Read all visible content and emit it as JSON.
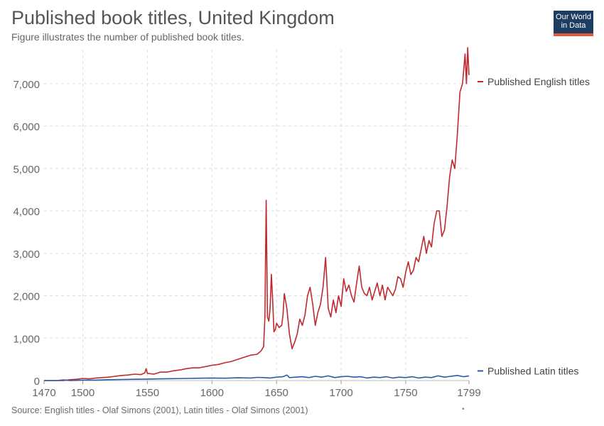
{
  "header": {
    "title": "Published book titles, United Kingdom",
    "subtitle": "Figure illustrates the number of published book titles.",
    "logo_line1": "Our World",
    "logo_line2": "in Data"
  },
  "footer": {
    "source": "Source: English titles - Olaf Simons (2001), Latin titles - Olaf Simons (2001)"
  },
  "colors": {
    "english": "#be2a2f",
    "latin": "#2b5aa6",
    "grid": "#dddddd",
    "logo_bg": "#1d3d63",
    "logo_bar": "#e2593b"
  },
  "chart_data": {
    "type": "line",
    "x_ticks": [
      "1470",
      "1500",
      "1550",
      "1600",
      "1650",
      "1700",
      "1750",
      "1799"
    ],
    "y_ticks": [
      "0",
      "1,000",
      "2,000",
      "3,000",
      "4,000",
      "5,000",
      "6,000",
      "7,000"
    ],
    "xlim": [
      1470,
      1799
    ],
    "ylim": [
      0,
      7800
    ],
    "grid": true,
    "legend": "right, labels at line ends",
    "series": [
      {
        "name": "Published English titles",
        "color": "#be2a2f",
        "x": [
          1470,
          1475,
          1480,
          1485,
          1490,
          1495,
          1500,
          1505,
          1510,
          1515,
          1520,
          1525,
          1530,
          1535,
          1540,
          1545,
          1548,
          1549,
          1550,
          1555,
          1560,
          1565,
          1570,
          1575,
          1580,
          1585,
          1590,
          1595,
          1600,
          1605,
          1610,
          1615,
          1620,
          1625,
          1630,
          1635,
          1638,
          1640,
          1641,
          1642,
          1643,
          1644,
          1645,
          1646,
          1647,
          1648,
          1649,
          1650,
          1652,
          1654,
          1655,
          1656,
          1658,
          1660,
          1662,
          1664,
          1666,
          1668,
          1670,
          1672,
          1674,
          1676,
          1678,
          1680,
          1682,
          1684,
          1686,
          1688,
          1689,
          1690,
          1692,
          1694,
          1696,
          1698,
          1700,
          1702,
          1704,
          1706,
          1708,
          1710,
          1712,
          1714,
          1716,
          1718,
          1720,
          1722,
          1724,
          1726,
          1728,
          1730,
          1732,
          1734,
          1736,
          1738,
          1740,
          1742,
          1744,
          1746,
          1748,
          1750,
          1752,
          1754,
          1756,
          1758,
          1760,
          1762,
          1764,
          1766,
          1768,
          1770,
          1772,
          1774,
          1776,
          1778,
          1780,
          1782,
          1784,
          1786,
          1788,
          1790,
          1792,
          1794,
          1796,
          1797,
          1798,
          1799
        ],
        "values": [
          0,
          0,
          0,
          0,
          20,
          30,
          50,
          40,
          60,
          70,
          80,
          100,
          120,
          130,
          150,
          140,
          180,
          280,
          170,
          150,
          200,
          200,
          230,
          250,
          280,
          300,
          300,
          330,
          360,
          380,
          420,
          450,
          500,
          550,
          600,
          620,
          700,
          800,
          1500,
          4250,
          1500,
          1400,
          1700,
          2500,
          1900,
          1150,
          1200,
          1350,
          1250,
          1300,
          1550,
          2050,
          1700,
          1100,
          750,
          900,
          1100,
          1450,
          1300,
          1550,
          2000,
          2200,
          1800,
          1300,
          1600,
          1800,
          2200,
          2900,
          2300,
          1700,
          1500,
          1900,
          1600,
          2000,
          1750,
          2400,
          2100,
          2250,
          2000,
          1850,
          2300,
          2700,
          2200,
          2050,
          2000,
          2200,
          1900,
          2100,
          2300,
          2000,
          2250,
          1900,
          2200,
          2100,
          2000,
          2150,
          2450,
          2400,
          2200,
          2550,
          2800,
          2500,
          2600,
          2900,
          2800,
          3100,
          3400,
          3000,
          3300,
          3150,
          3700,
          4000,
          4000,
          3400,
          3550,
          4100,
          4800,
          5200,
          5000,
          5800,
          6800,
          7000,
          7700,
          7000,
          7850,
          7200
        ]
      },
      {
        "name": "Published Latin titles",
        "color": "#2b5aa6",
        "x": [
          1470,
          1480,
          1485,
          1490,
          1500,
          1510,
          1520,
          1530,
          1540,
          1550,
          1560,
          1570,
          1580,
          1590,
          1600,
          1610,
          1620,
          1630,
          1635,
          1640,
          1645,
          1650,
          1655,
          1658,
          1660,
          1665,
          1670,
          1675,
          1680,
          1685,
          1690,
          1695,
          1700,
          1705,
          1710,
          1715,
          1720,
          1725,
          1730,
          1735,
          1740,
          1745,
          1750,
          1755,
          1760,
          1765,
          1770,
          1775,
          1780,
          1785,
          1790,
          1795,
          1799
        ],
        "values": [
          0,
          0,
          15,
          0,
          10,
          10,
          20,
          25,
          30,
          35,
          40,
          45,
          50,
          55,
          60,
          55,
          65,
          60,
          75,
          70,
          60,
          80,
          90,
          130,
          70,
          80,
          90,
          70,
          100,
          80,
          110,
          70,
          90,
          100,
          80,
          90,
          60,
          80,
          70,
          90,
          60,
          80,
          70,
          90,
          60,
          80,
          70,
          110,
          80,
          100,
          120,
          90,
          110
        ]
      }
    ]
  }
}
